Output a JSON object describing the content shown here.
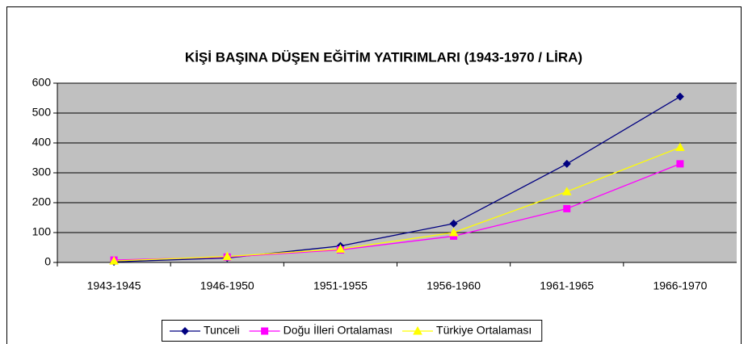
{
  "chart_data": {
    "type": "line",
    "title": "KİŞİ BAŞINA DÜŞEN EĞİTİM YATIRIMLARI (1943-1970 / LİRA)",
    "categories": [
      "1943-1945",
      "1946-1950",
      "1951-1955",
      "1956-1960",
      "1961-1965",
      "1966-1970"
    ],
    "series": [
      {
        "name": "Tunceli",
        "color": "#000080",
        "marker": "diamond",
        "values": [
          2,
          15,
          55,
          130,
          330,
          555
        ]
      },
      {
        "name": "Doğu İlleri Ortalaması",
        "color": "#ff00ff",
        "marker": "square",
        "values": [
          8,
          18,
          42,
          88,
          180,
          330
        ]
      },
      {
        "name": "Türkiye Ortalaması",
        "color": "#ffff00",
        "marker": "triangle",
        "values": [
          5,
          20,
          45,
          100,
          237,
          385
        ]
      }
    ],
    "ylim": [
      0,
      600
    ],
    "yticks": [
      0,
      100,
      200,
      300,
      400,
      500,
      600
    ],
    "grid": true,
    "legend": "bottom"
  }
}
